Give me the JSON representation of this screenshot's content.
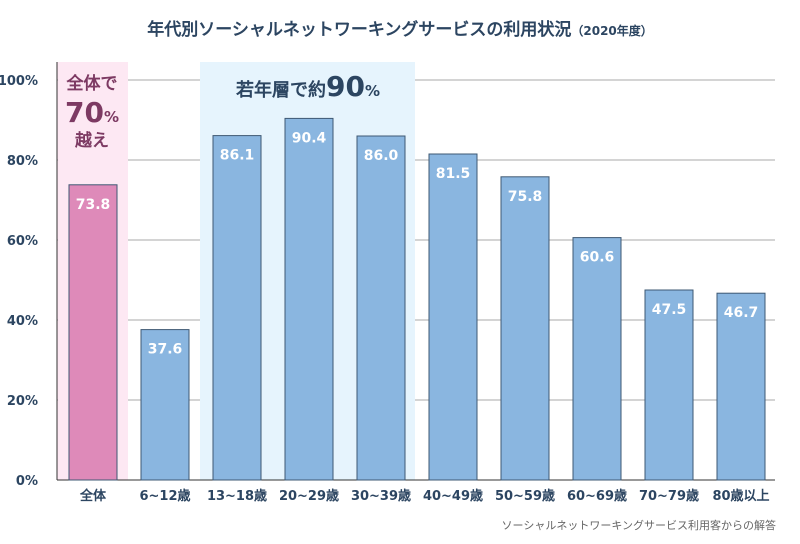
{
  "chart_data": {
    "type": "bar",
    "title": "年代別ソーシャルネットワーキングサービスの利用状況",
    "title_suffix": "（2020年度）",
    "categories": [
      "全体",
      "6~12歳",
      "13~18歳",
      "20~29歳",
      "30~39歳",
      "40~49歳",
      "50~59歳",
      "60~69歳",
      "70~79歳",
      "80歳以上"
    ],
    "values": [
      73.8,
      37.6,
      86.1,
      90.4,
      86.0,
      81.5,
      75.8,
      60.6,
      47.5,
      46.7
    ],
    "data_labels": [
      "73.8",
      "37.6",
      "86.1",
      "90.4",
      "86.0",
      "81.5",
      "75.8",
      "60.6",
      "47.5",
      "46.7"
    ],
    "ylim": [
      0,
      100
    ],
    "yticks": [
      "0%",
      "20%",
      "40%",
      "60%",
      "80%",
      "100%"
    ],
    "grid": true,
    "colors": {
      "bar": "#8ab6e0",
      "bar_highlight": "#de8ab9",
      "bar_border": "#3e5873",
      "text": "#2c4561",
      "pink_band": "#fde8f3",
      "blue_band": "#e6f4fd",
      "annotation_pink": "#7d3a63"
    },
    "annotations": {
      "overall": {
        "line1": "全体で",
        "num": "70",
        "pct": "%",
        "line3": "越え"
      },
      "young": {
        "text": "若年層で約",
        "num": "90",
        "pct": "%"
      }
    },
    "footnote": "ソーシャルネットワーキングサービス利用客からの解答"
  }
}
